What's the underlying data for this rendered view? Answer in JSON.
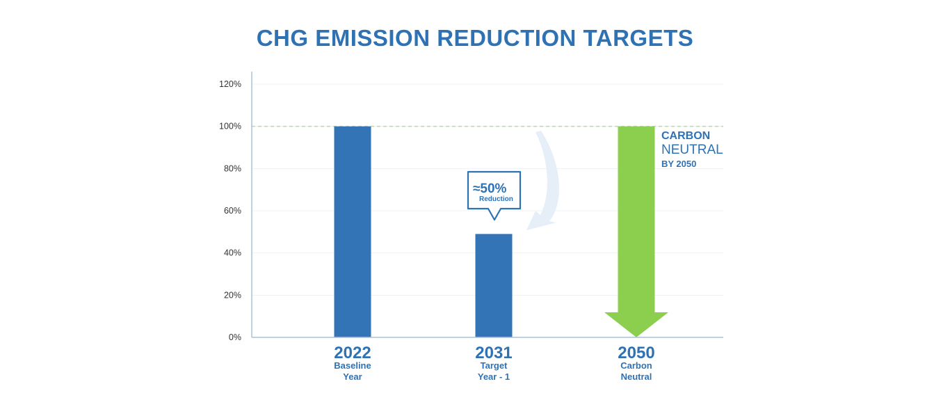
{
  "chart_data": {
    "type": "bar",
    "title": "CHG EMISSION REDUCTION TARGETS",
    "categories": [
      {
        "year": "2022",
        "label_lines": [
          "Baseline",
          "Year"
        ]
      },
      {
        "year": "2031",
        "label_lines": [
          "Target",
          "Year - 1"
        ]
      },
      {
        "year": "2050",
        "label_lines": [
          "Carbon",
          "Neutral"
        ]
      }
    ],
    "values": [
      100,
      49,
      100
    ],
    "series_styles": [
      "bar",
      "bar",
      "down-arrow"
    ],
    "colors": {
      "bar": "#3274b6",
      "arrow": "#8ccf4e",
      "axis": "#a9c2d8",
      "grid": "#eef1f4",
      "reference": "#b7dca0",
      "curve": "#e6eef7",
      "text": "#2f72b4"
    },
    "ylim": [
      0,
      120
    ],
    "yticks": [
      0,
      20,
      40,
      60,
      80,
      100,
      120
    ],
    "ytick_format": "{v}%",
    "reference_line": 100,
    "grid": true,
    "annotations": {
      "callout": {
        "main": "≈50%",
        "sub": "Reduction"
      },
      "neutral": {
        "line1": "CARBON",
        "line2": "NEUTRAL",
        "line3": "BY 2050"
      }
    },
    "xlabel": "",
    "ylabel": ""
  }
}
